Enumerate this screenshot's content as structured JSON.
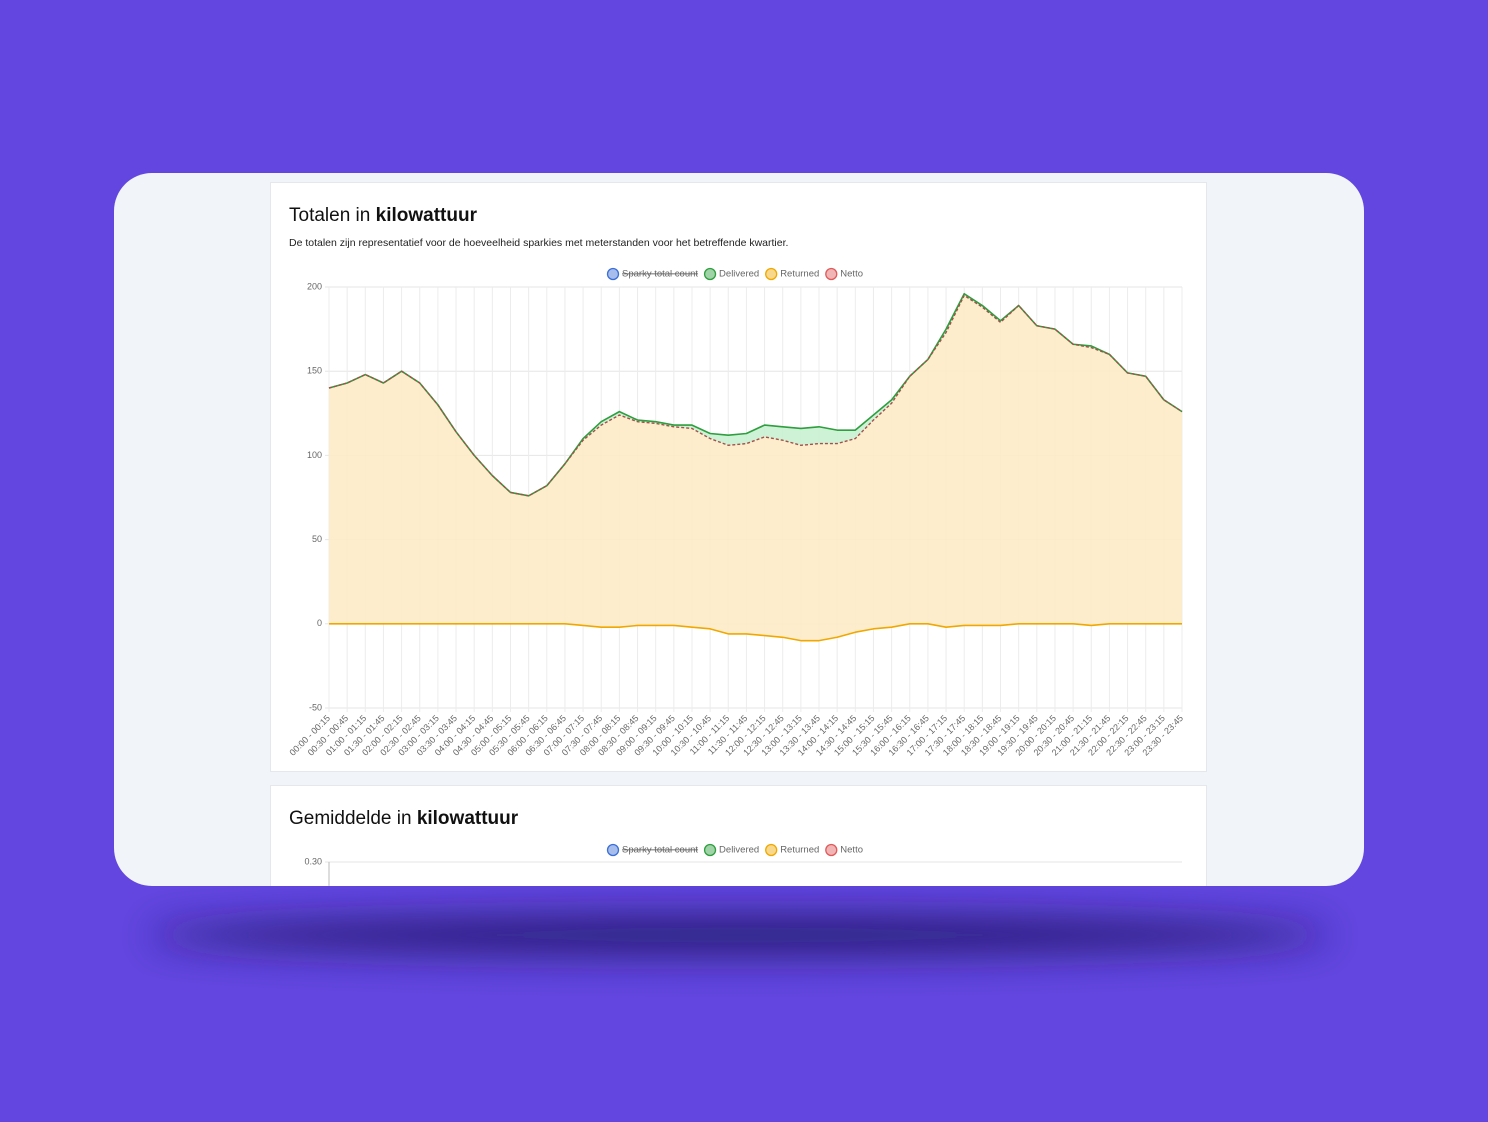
{
  "chart_data": [
    {
      "type": "line",
      "title": "Totalen in",
      "title_bold": "kilowattuur",
      "subtitle": "De totalen zijn representatief voor de hoeveelheid sparkies met meterstanden voor het betreffende kwartier.",
      "categories": [
        "00:00 - 00:15",
        "00:30 - 00:45",
        "01:00 - 01:15",
        "01:30 - 01:45",
        "02:00 - 02:15",
        "02:30 - 02:45",
        "03:00 - 03:15",
        "03:30 - 03:45",
        "04:00 - 04:15",
        "04:30 - 04:45",
        "05:00 - 05:15",
        "05:30 - 05:45",
        "06:00 - 06:15",
        "06:30 - 06:45",
        "07:00 - 07:15",
        "07:30 - 07:45",
        "08:00 - 08:15",
        "08:30 - 08:45",
        "09:00 - 09:15",
        "09:30 - 09:45",
        "10:00 - 10:15",
        "10:30 - 10:45",
        "11:00 - 11:15",
        "11:30 - 11:45",
        "12:00 - 12:15",
        "12:30 - 12:45",
        "13:00 - 13:15",
        "13:30 - 13:45",
        "14:00 - 14:15",
        "14:30 - 14:45",
        "15:00 - 15:15",
        "15:30 - 15:45",
        "16:00 - 16:15",
        "16:30 - 16:45",
        "17:00 - 17:15",
        "17:30 - 17:45",
        "18:00 - 18:15",
        "18:30 - 18:45",
        "19:00 - 19:15",
        "19:30 - 19:45",
        "20:00 - 20:15",
        "20:30 - 20:45",
        "21:00 - 21:15",
        "21:30 - 21:45",
        "22:00 - 22:15",
        "22:30 - 22:45",
        "23:00 - 23:15",
        "23:30 - 23:45"
      ],
      "series": [
        {
          "name": "Sparky total count",
          "color": "#3b6fd8",
          "hidden": true
        },
        {
          "name": "Delivered",
          "color": "#2e9e3e",
          "values": [
            140,
            143,
            148,
            143,
            150,
            143,
            130,
            114,
            100,
            88,
            78,
            76,
            82,
            95,
            110,
            120,
            126,
            121,
            120,
            118,
            118,
            113,
            112,
            113,
            118,
            117,
            116,
            117,
            115,
            115,
            124,
            133,
            147,
            157,
            175,
            196,
            189,
            180,
            189,
            177,
            175,
            166,
            165,
            160,
            149,
            147,
            133,
            126
          ]
        },
        {
          "name": "Returned",
          "color": "#f0a800",
          "values": [
            0,
            0,
            0,
            0,
            0,
            0,
            0,
            0,
            0,
            0,
            0,
            0,
            0,
            0,
            -1,
            -2,
            -2,
            -1,
            -1,
            -1,
            -2,
            -3,
            -6,
            -6,
            -7,
            -8,
            -10,
            -10,
            -8,
            -5,
            -3,
            -2,
            0,
            0,
            -2,
            -1,
            -1,
            -1,
            0,
            0,
            0,
            0,
            -1,
            0,
            0,
            0,
            0,
            0
          ]
        },
        {
          "name": "Netto",
          "color": "#e05a5a",
          "values": [
            140,
            143,
            148,
            143,
            150,
            143,
            130,
            114,
            100,
            88,
            78,
            76,
            82,
            95,
            109,
            118,
            124,
            120,
            119,
            117,
            116,
            110,
            106,
            107,
            111,
            109,
            106,
            107,
            107,
            110,
            121,
            131,
            147,
            157,
            173,
            195,
            188,
            179,
            189,
            177,
            175,
            166,
            164,
            160,
            149,
            147,
            133,
            126
          ]
        }
      ],
      "ylim": [
        -50,
        200
      ],
      "yticks": [
        -50,
        0,
        50,
        100,
        150,
        200
      ],
      "grid": true,
      "legend": "top"
    },
    {
      "type": "line",
      "title": "Gemiddelde in",
      "title_bold": "kilowattuur",
      "series": [
        {
          "name": "Sparky total count",
          "color": "#3b6fd8",
          "hidden": true
        },
        {
          "name": "Delivered",
          "color": "#2e9e3e"
        },
        {
          "name": "Returned",
          "color": "#f0a800"
        },
        {
          "name": "Netto",
          "color": "#e05a5a"
        }
      ],
      "yticks": [
        {
          "value": 0.3,
          "label": "0.30"
        }
      ],
      "grid": true,
      "legend": "top"
    }
  ]
}
